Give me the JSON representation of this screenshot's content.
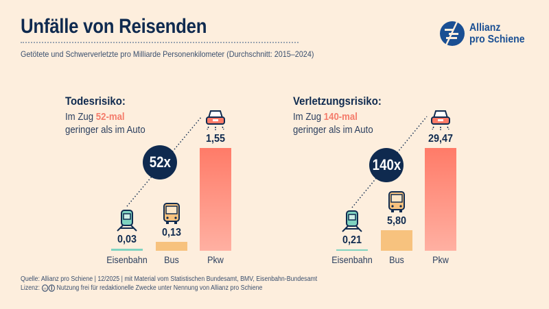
{
  "header": {
    "title": "Unfälle von Reisenden",
    "subtitle": "Getötete und Schwerverletzte pro Milliarde Personenkilometer (Durchschnitt: 2015–2024)",
    "logo_line1": "Allianz",
    "logo_line2": "pro Schiene"
  },
  "colors": {
    "Eisenbahn": "#7fd3c0",
    "Bus": "#f7c27e",
    "Pkw": "#ff7b68",
    "accent": "#f47c6b",
    "navy": "#0f2a4f"
  },
  "icons": {
    "Eisenbahn": "train-icon",
    "Bus": "bus-icon",
    "Pkw": "car-icon"
  },
  "chart_data": [
    {
      "type": "bar",
      "title": "Todesrisiko:",
      "subtitle_pre": "Im Zug ",
      "subtitle_highlight": "52-mal",
      "subtitle_post": "geringer als im Auto",
      "ratio_badge": "52x",
      "categories": [
        "Eisenbahn",
        "Bus",
        "Pkw"
      ],
      "values": [
        0.03,
        0.13,
        1.55
      ],
      "value_labels": [
        "0,03",
        "0,13",
        "1,55"
      ]
    },
    {
      "type": "bar",
      "title": "Verletzungsrisiko:",
      "subtitle_pre": "Im Zug ",
      "subtitle_highlight": "140-mal",
      "subtitle_post": "geringer als im Auto",
      "ratio_badge": "140x",
      "categories": [
        "Eisenbahn",
        "Bus",
        "Pkw"
      ],
      "values": [
        0.21,
        5.8,
        29.47
      ],
      "value_labels": [
        "0,21",
        "5,80",
        "29,47"
      ]
    }
  ],
  "footer": {
    "source": "Quelle: Allianz pro Schiene | 12/2025 | mit Material vom Statistischen Bundesamt, BMV, Eisenbahn-Bundesamt",
    "license_label": "Lizenz:",
    "license_text": "Nutzung frei für redaktionelle Zwecke unter Nennung von Allianz pro Schiene"
  }
}
